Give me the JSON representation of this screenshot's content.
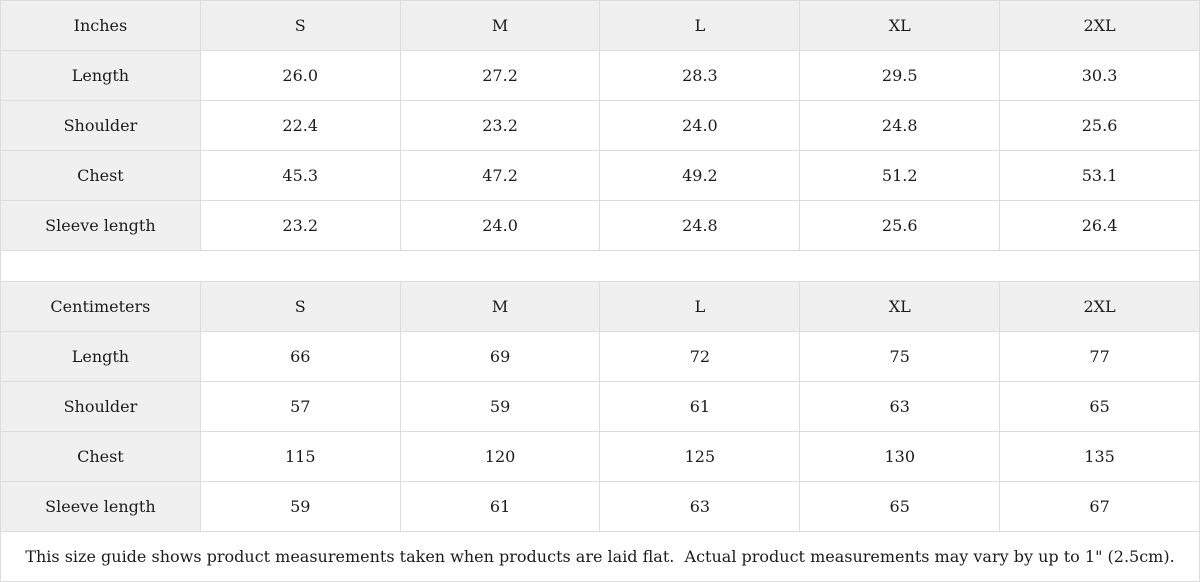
{
  "colors": {
    "header_background": "#f0f0f0",
    "cell_background": "#ffffff",
    "border": "#dddddd",
    "text": "#1c1c1c"
  },
  "tables": [
    {
      "unit_label": "Inches",
      "sizes": [
        "S",
        "M",
        "L",
        "XL",
        "2XL"
      ],
      "rows": [
        {
          "label": "Length",
          "values": [
            "26.0",
            "27.2",
            "28.3",
            "29.5",
            "30.3"
          ]
        },
        {
          "label": "Shoulder",
          "values": [
            "22.4",
            "23.2",
            "24.0",
            "24.8",
            "25.6"
          ]
        },
        {
          "label": "Chest",
          "values": [
            "45.3",
            "47.2",
            "49.2",
            "51.2",
            "53.1"
          ]
        },
        {
          "label": "Sleeve length",
          "values": [
            "23.2",
            "24.0",
            "24.8",
            "25.6",
            "26.4"
          ]
        }
      ]
    },
    {
      "unit_label": "Centimeters",
      "sizes": [
        "S",
        "M",
        "L",
        "XL",
        "2XL"
      ],
      "rows": [
        {
          "label": "Length",
          "values": [
            "66",
            "69",
            "72",
            "75",
            "77"
          ]
        },
        {
          "label": "Shoulder",
          "values": [
            "57",
            "59",
            "61",
            "63",
            "65"
          ]
        },
        {
          "label": "Chest",
          "values": [
            "115",
            "120",
            "125",
            "130",
            "135"
          ]
        },
        {
          "label": "Sleeve length",
          "values": [
            "59",
            "61",
            "63",
            "65",
            "67"
          ]
        }
      ]
    }
  ],
  "footer": {
    "note": "This size guide shows product measurements taken when products are laid flat.  Actual product measurements may vary by up to 1\" (2.5cm)."
  }
}
